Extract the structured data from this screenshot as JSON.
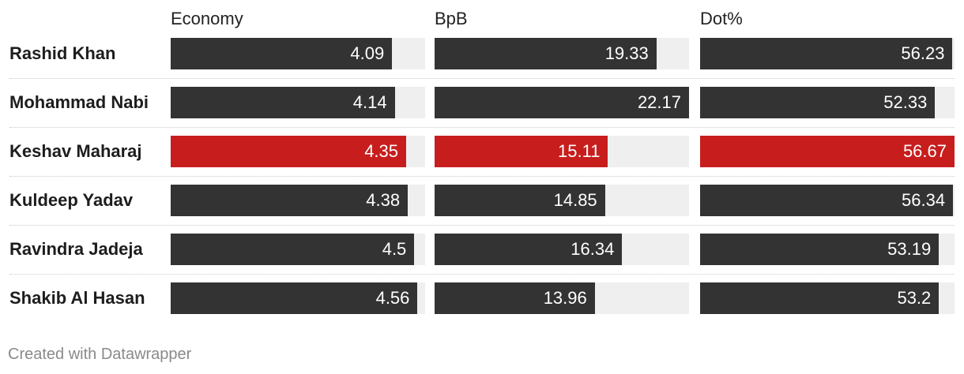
{
  "footer": "Created with Datawrapper",
  "colors": {
    "bar": "#333333",
    "highlight": "#c71e1d",
    "track": "#efefef"
  },
  "chart_data": {
    "type": "bar",
    "orientation": "horizontal",
    "columns": [
      "Economy",
      "BpB",
      "Dot%"
    ],
    "categories": [
      "Rashid Khan",
      "Mohammad Nabi",
      "Keshav Maharaj",
      "Kuldeep Yadav",
      "Ravindra Jadeja",
      "Shakib Al Hasan"
    ],
    "highlighted": "Keshav Maharaj",
    "series": [
      {
        "name": "Economy",
        "values": [
          4.09,
          4.14,
          4.35,
          4.38,
          4.5,
          4.56
        ],
        "labels": [
          "4.09",
          "4.14",
          "4.35",
          "4.38",
          "4.5",
          "4.56"
        ],
        "xlim": [
          0,
          4.7
        ]
      },
      {
        "name": "BpB",
        "values": [
          19.33,
          22.17,
          15.11,
          14.85,
          16.34,
          13.96
        ],
        "labels": [
          "19.33",
          "22.17",
          "15.11",
          "14.85",
          "16.34",
          "13.96"
        ],
        "xlim": [
          0,
          22.17
        ]
      },
      {
        "name": "Dot%",
        "values": [
          56.23,
          52.33,
          56.67,
          56.34,
          53.19,
          53.2
        ],
        "labels": [
          "56.23",
          "52.33",
          "56.67",
          "56.34",
          "53.19",
          "53.2"
        ],
        "xlim": [
          0,
          56.67
        ]
      }
    ]
  }
}
